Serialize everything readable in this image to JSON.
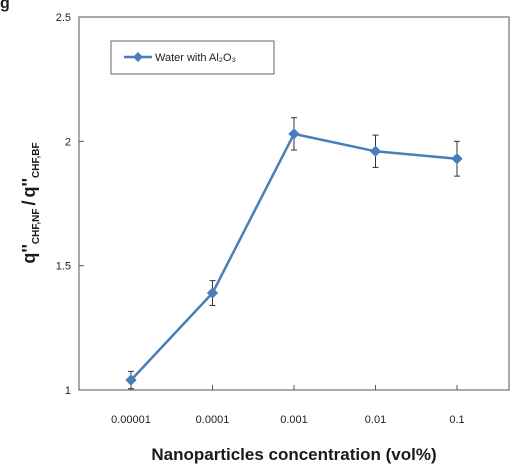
{
  "figure": {
    "label": "g"
  },
  "chart_data": {
    "type": "line",
    "xscale": "log",
    "categories": [
      "0.00001",
      "0.0001",
      "0.001",
      "0.01",
      "0.1"
    ],
    "x": [
      1e-05,
      0.0001,
      0.001,
      0.01,
      0.1
    ],
    "series": [
      {
        "name": "Water with Al₂O₃",
        "values": [
          1.04,
          1.39,
          2.03,
          1.96,
          1.93
        ],
        "error": [
          0.035,
          0.05,
          0.065,
          0.065,
          0.07
        ],
        "color": "#4a7ebb"
      }
    ],
    "xlabel": "Nanoparticles concentration (vol%)",
    "ylabel_main": "q''",
    "ylabel_sub_numerator": "CHF,NF",
    "ylabel_slash": "/",
    "ylabel_sub_denominator": "CHF,BF",
    "ylim": [
      1,
      2.5
    ],
    "yticks": [
      1,
      1.5,
      2,
      2.5
    ],
    "yticklabels": [
      "1",
      "1.5",
      "2",
      "2.5"
    ],
    "grid": false,
    "legend_position": "top-left"
  }
}
